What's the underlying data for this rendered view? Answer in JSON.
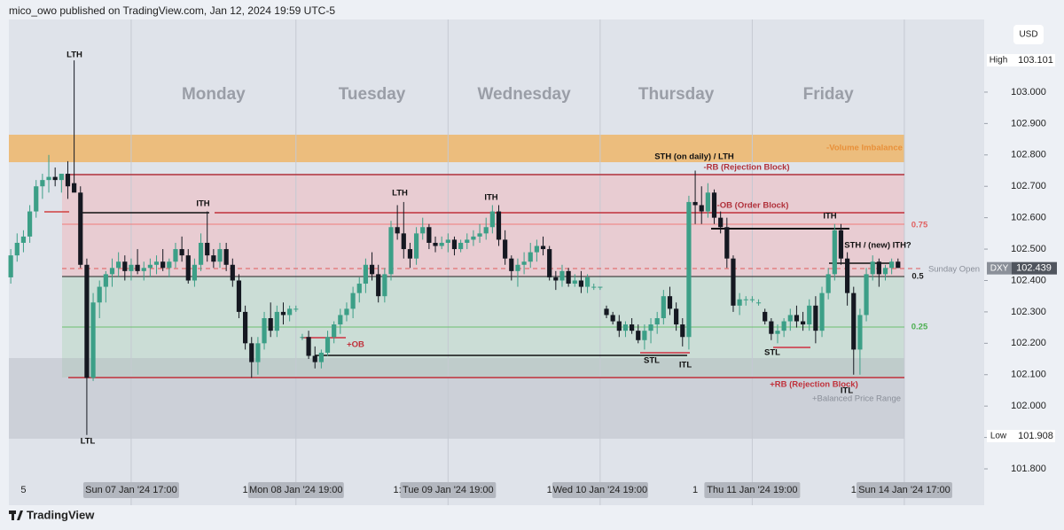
{
  "header": "mico_owo published on TradingView.com, Jan 12, 2024 19:59 UTC-5",
  "footer": "TradingView",
  "currency": "USD",
  "chart_data": {
    "type": "candlestick",
    "symbol": "DXY",
    "up_color": "#3c9f87",
    "down_color": "#151821",
    "open": [
      102.41,
      102.48,
      102.52,
      102.54,
      102.62,
      102.7,
      102.72,
      102.73,
      102.72,
      102.74,
      102.71,
      102.68,
      102.45,
      102.09,
      102.33,
      102.38,
      102.42,
      102.44,
      102.46,
      102.43,
      102.45,
      102.43,
      102.44,
      102.45,
      102.46,
      102.44,
      102.46,
      102.5,
      102.48,
      102.4,
      102.45,
      102.52,
      102.48,
      102.46,
      102.5,
      102.45,
      102.4,
      102.3,
      102.2,
      102.14,
      102.2,
      102.28,
      102.24,
      102.3,
      102.29,
      102.31,
      102.22,
      102.22,
      102.16,
      102.14,
      102.17,
      102.22,
      102.26,
      102.29,
      102.31,
      102.36,
      102.39,
      102.45,
      102.42,
      102.35,
      102.42,
      102.57,
      102.55,
      102.5,
      102.47,
      102.55,
      102.57,
      102.52,
      102.51,
      102.52,
      102.53,
      102.5,
      102.52,
      102.53,
      102.54,
      102.55,
      102.57,
      102.62,
      102.53,
      102.47,
      102.43,
      102.45,
      102.46,
      102.49,
      102.51,
      102.5,
      102.41,
      102.4,
      102.43,
      102.39,
      102.4,
      102.38,
      102.38,
      102.38,
      102.31,
      102.29,
      102.27,
      102.24,
      102.26,
      102.24,
      102.21,
      102.24,
      102.26,
      102.28,
      102.35,
      102.31,
      102.26,
      102.22,
      102.65,
      102.64,
      102.62,
      102.68,
      102.6,
      102.57,
      102.47,
      102.32,
      102.34,
      102.34,
      102.33,
      102.3,
      102.27,
      102.23,
      102.24,
      102.27,
      102.29,
      102.27,
      102.26,
      102.32,
      102.24,
      102.36,
      102.42,
      102.56,
      102.47,
      102.36,
      102.18,
      102.29,
      102.42,
      102.46,
      102.42,
      102.44,
      102.46
    ],
    "high": [
      102.5,
      102.55,
      102.56,
      102.64,
      102.72,
      102.74,
      102.8,
      102.76,
      102.74,
      102.78,
      103.101,
      102.7,
      102.47,
      102.36,
      102.4,
      102.43,
      102.47,
      102.49,
      102.48,
      102.47,
      102.5,
      102.46,
      102.47,
      102.48,
      102.5,
      102.47,
      102.52,
      102.54,
      102.5,
      102.47,
      102.55,
      102.62,
      102.5,
      102.52,
      102.52,
      102.47,
      102.42,
      102.32,
      102.22,
      102.22,
      102.3,
      102.33,
      102.32,
      102.33,
      102.32,
      102.32,
      102.23,
      102.24,
      102.19,
      102.18,
      102.24,
      102.27,
      102.31,
      102.33,
      102.38,
      102.41,
      102.47,
      102.49,
      102.45,
      102.44,
      102.59,
      102.64,
      102.65,
      102.52,
      102.57,
      102.6,
      102.58,
      102.54,
      102.54,
      102.55,
      102.54,
      102.53,
      102.55,
      102.56,
      102.58,
      102.6,
      102.64,
      102.64,
      102.56,
      102.48,
      102.47,
      102.49,
      102.52,
      102.53,
      102.54,
      102.51,
      102.43,
      102.45,
      102.44,
      102.42,
      102.43,
      102.42,
      102.39,
      102.38,
      102.32,
      102.3,
      102.29,
      102.27,
      102.28,
      102.26,
      102.26,
      102.28,
      102.3,
      102.37,
      102.38,
      102.33,
      102.28,
      102.67,
      102.75,
      102.7,
      102.71,
      102.69,
      102.62,
      102.6,
      102.48,
      102.36,
      102.35,
      102.35,
      102.34,
      102.31,
      102.28,
      102.26,
      102.28,
      102.31,
      102.32,
      102.3,
      102.34,
      102.35,
      102.38,
      102.44,
      102.58,
      102.58,
      102.49,
      102.38,
      102.31,
      102.44,
      102.48,
      102.47,
      102.45,
      102.47,
      102.47
    ],
    "low": [
      102.39,
      102.46,
      102.49,
      102.52,
      102.6,
      102.66,
      102.68,
      102.7,
      102.68,
      102.66,
      102.69,
      102.44,
      101.908,
      102.08,
      102.28,
      102.33,
      102.38,
      102.41,
      102.4,
      102.4,
      102.42,
      102.4,
      102.41,
      102.42,
      102.43,
      102.41,
      102.44,
      102.46,
      102.39,
      102.38,
      102.43,
      102.46,
      102.44,
      102.44,
      102.43,
      102.38,
      102.28,
      102.18,
      102.09,
      102.1,
      102.18,
      102.22,
      102.22,
      102.26,
      102.27,
      102.3,
      102.21,
      102.15,
      102.12,
      102.12,
      102.16,
      102.2,
      102.23,
      102.27,
      102.28,
      102.33,
      102.36,
      102.4,
      102.33,
      102.33,
      102.4,
      102.53,
      102.47,
      102.44,
      102.45,
      102.53,
      102.5,
      102.49,
      102.5,
      102.49,
      102.48,
      102.49,
      102.5,
      102.51,
      102.52,
      102.53,
      102.55,
      102.51,
      102.45,
      102.4,
      102.38,
      102.42,
      102.44,
      102.46,
      102.48,
      102.4,
      102.37,
      102.38,
      102.38,
      102.38,
      102.36,
      102.36,
      102.37,
      102.37,
      102.28,
      102.26,
      102.22,
      102.22,
      102.23,
      102.2,
      102.18,
      102.2,
      102.23,
      102.26,
      102.29,
      102.24,
      102.19,
      102.18,
      102.58,
      102.58,
      102.6,
      102.58,
      102.55,
      102.44,
      102.3,
      102.29,
      102.32,
      102.33,
      102.32,
      102.26,
      102.21,
      102.2,
      102.22,
      102.24,
      102.25,
      102.24,
      102.24,
      102.2,
      102.22,
      102.34,
      102.4,
      102.45,
      102.32,
      102.1,
      102.1,
      102.27,
      102.4,
      102.38,
      102.4,
      102.42,
      102.44
    ],
    "close": [
      102.48,
      102.52,
      102.54,
      102.62,
      102.7,
      102.72,
      102.73,
      102.72,
      102.74,
      102.7,
      102.68,
      102.45,
      102.09,
      102.33,
      102.38,
      102.42,
      102.44,
      102.46,
      102.43,
      102.45,
      102.43,
      102.44,
      102.45,
      102.46,
      102.44,
      102.46,
      102.5,
      102.48,
      102.4,
      102.45,
      102.52,
      102.48,
      102.46,
      102.5,
      102.45,
      102.4,
      102.3,
      102.2,
      102.14,
      102.2,
      102.28,
      102.24,
      102.3,
      102.29,
      102.31,
      102.31,
      102.22,
      102.16,
      102.14,
      102.17,
      102.22,
      102.26,
      102.29,
      102.31,
      102.36,
      102.39,
      102.45,
      102.42,
      102.35,
      102.42,
      102.57,
      102.55,
      102.5,
      102.47,
      102.55,
      102.57,
      102.52,
      102.51,
      102.52,
      102.53,
      102.5,
      102.52,
      102.53,
      102.54,
      102.55,
      102.57,
      102.62,
      102.53,
      102.47,
      102.43,
      102.45,
      102.46,
      102.49,
      102.51,
      102.5,
      102.41,
      102.4,
      102.43,
      102.39,
      102.4,
      102.38,
      102.41,
      102.38,
      102.38,
      102.29,
      102.27,
      102.24,
      102.26,
      102.24,
      102.21,
      102.24,
      102.26,
      102.28,
      102.35,
      102.31,
      102.26,
      102.22,
      102.65,
      102.64,
      102.62,
      102.68,
      102.6,
      102.57,
      102.47,
      102.32,
      102.34,
      102.34,
      102.34,
      102.33,
      102.27,
      102.23,
      102.24,
      102.27,
      102.29,
      102.27,
      102.26,
      102.32,
      102.24,
      102.36,
      102.42,
      102.56,
      102.47,
      102.36,
      102.18,
      102.29,
      102.42,
      102.46,
      102.42,
      102.44,
      102.46,
      102.44
    ],
    "xlim": [
      -0.3,
      153.6
    ],
    "ylim": [
      101.769,
      103.237
    ],
    "yticks": [
      {
        "value": 101.8,
        "label": "101.800"
      },
      {
        "value": 101.9,
        "label": "101.900"
      },
      {
        "value": 102.0,
        "label": "102.000"
      },
      {
        "value": 102.1,
        "label": "102.100"
      },
      {
        "value": 102.2,
        "label": "102.200"
      },
      {
        "value": 102.3,
        "label": "102.300"
      },
      {
        "value": 102.4,
        "label": "102.400"
      },
      {
        "value": 102.5,
        "label": "102.500"
      },
      {
        "value": 102.6,
        "label": "102.600"
      },
      {
        "value": 102.7,
        "label": "102.700"
      },
      {
        "value": 102.8,
        "label": "102.800"
      },
      {
        "value": 102.9,
        "label": "102.900"
      },
      {
        "value": 103.0,
        "label": "103.000"
      }
    ],
    "xticks": [
      {
        "value": 19,
        "label": "Sun 07 Jan '24   17:00"
      },
      {
        "value": 45,
        "label": "Mon 08 Jan '24   19:00"
      },
      {
        "value": 69,
        "label": "Tue 09 Jan '24   19:00"
      },
      {
        "value": 93,
        "label": "Wed 10 Jan '24   19:00"
      },
      {
        "value": 117,
        "label": "Thu 11 Jan '24   19:00"
      },
      {
        "value": 141,
        "label": "Sun 14 Jan '24   17:00"
      }
    ],
    "x_cut_labels": [
      {
        "value": 2,
        "label": "5"
      },
      {
        "value": 37,
        "label": "1"
      },
      {
        "value": 61,
        "label": "1:"
      },
      {
        "value": 85,
        "label": "1"
      },
      {
        "value": 108,
        "label": "1"
      },
      {
        "value": 133,
        "label": "1"
      }
    ],
    "grid": {
      "x": true,
      "y": false
    },
    "day_labels": [
      "Monday",
      "Tuesday",
      "Wednesday",
      "Thursday",
      "Friday"
    ],
    "high_label": "High",
    "high_price": 103.101,
    "low_label": "Low",
    "low_price": 101.908,
    "last_price": 102.439,
    "annotations": [
      "LTH",
      "LTL",
      "ITH",
      "LTH",
      "ITH",
      "STH (on daily) / LTH",
      "-RB (Rejection Block)",
      "-OB (Order Block)",
      "-Volume Imbalance",
      "ITH",
      "STH / (new) ITH?",
      "0.75",
      "0.5",
      "0.25",
      "+OB",
      "STL",
      "ITL",
      "STL",
      "+RB (Rejection Block)",
      "ITL",
      "+Balanced Price Range",
      "Sunday Open"
    ]
  }
}
